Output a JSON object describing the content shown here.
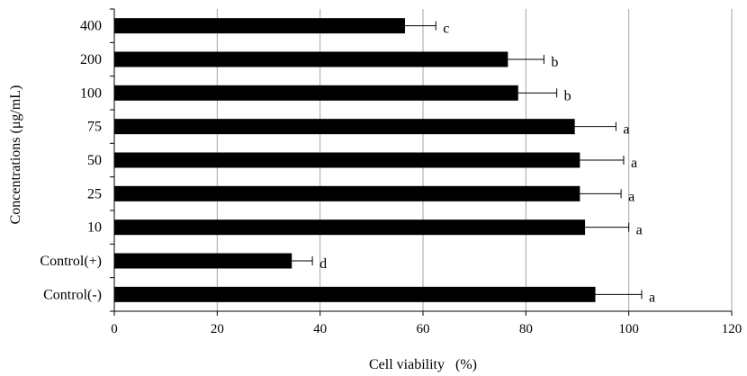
{
  "chart_data": {
    "type": "bar",
    "orientation": "horizontal",
    "title": "",
    "xlabel": "Cell viability   (%)",
    "ylabel": "Concentrations (μg/mL)",
    "xlim": [
      0,
      120
    ],
    "xticks": [
      "0",
      "20",
      "40",
      "60",
      "80",
      "100",
      "120"
    ],
    "grid": "vertical",
    "legend": "none",
    "bar_color": "#000000",
    "categories": [
      "400",
      "200",
      "100",
      "75",
      "50",
      "25",
      "10",
      "Control(+)",
      "Control(-)"
    ],
    "values": [
      56.5,
      76.5,
      78.5,
      89.5,
      90.5,
      90.5,
      91.5,
      34.5,
      93.5
    ],
    "errors": [
      6.0,
      7.0,
      7.5,
      8.0,
      8.5,
      8.0,
      8.5,
      4.0,
      9.0
    ],
    "significance_letters": [
      "c",
      "b",
      "b",
      "a",
      "a",
      "a",
      "a",
      "d",
      "a"
    ]
  }
}
